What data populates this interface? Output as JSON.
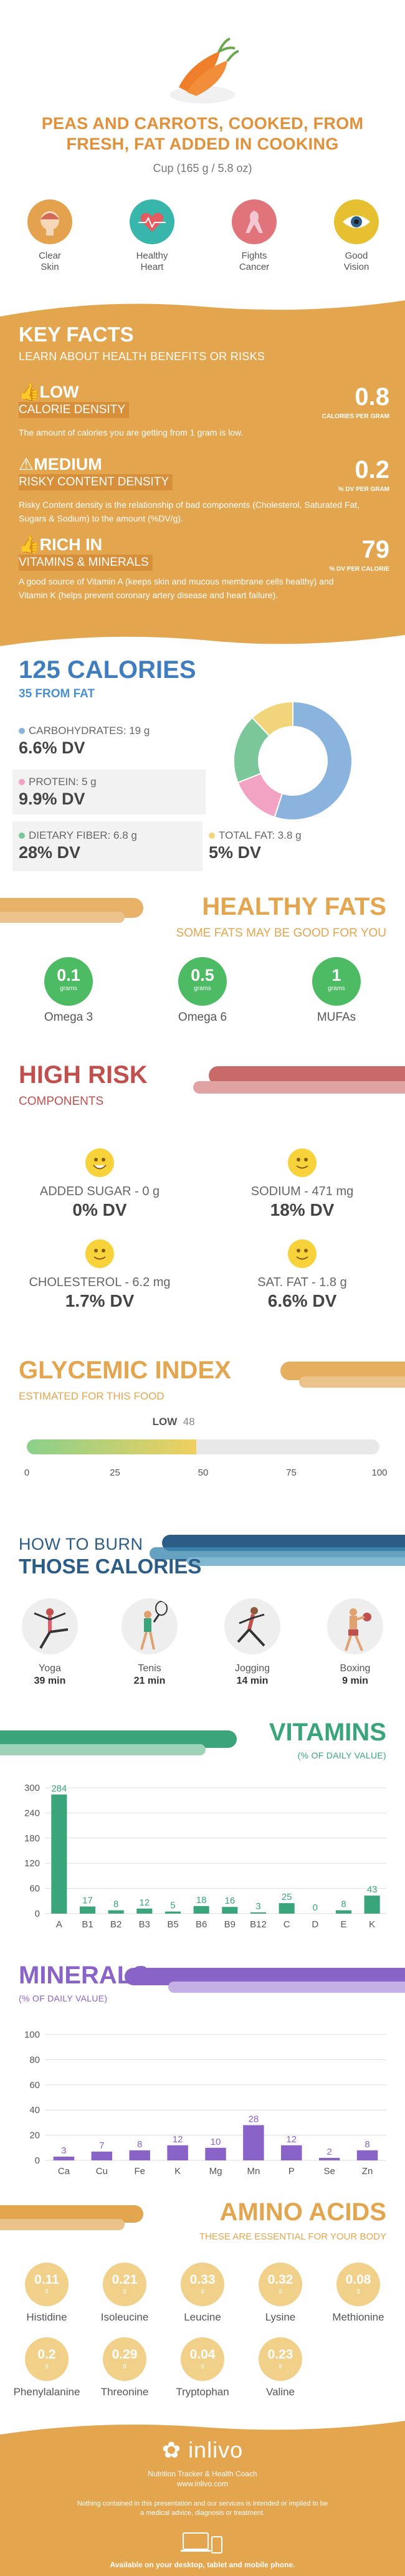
{
  "hero": {
    "title_line1": "PEAS AND CARROTS, COOKED, FROM",
    "title_line2": "FRESH, FAT ADDED IN COOKING",
    "serving": "Cup (165 g / 5.8 oz)",
    "benefits": [
      {
        "label1": "Clear",
        "label2": "Skin",
        "icon": "face-icon",
        "color": "#e4a24f"
      },
      {
        "label1": "Healthy",
        "label2": "Heart",
        "icon": "heart-icon",
        "color": "#38b6ab"
      },
      {
        "label1": "Fights",
        "label2": "Cancer",
        "icon": "ribbon-icon",
        "color": "#e0747a"
      },
      {
        "label1": "Good",
        "label2": "Vision",
        "icon": "eye-icon",
        "color": "#e6c030"
      }
    ]
  },
  "key_facts": {
    "title": "KEY FACTS",
    "subtitle": "LEARN ABOUT HEALTH BENEFITS OR RISKS",
    "items": [
      {
        "level": "LOW",
        "name": "CALORIE DENSITY",
        "desc": "The amount of calories you are getting from 1 gram is low.",
        "value": "0.8",
        "unit": "CALORIES PER GRAM",
        "icon": "thumbs-up-icon"
      },
      {
        "level": "MEDIUM",
        "name": "RISKY CONTENT DENSITY",
        "desc": "Risky Content density is the relationship of bad components (Cholesterol, Saturated Fat, Sugars & Sodium) to the amount (%DV/g).",
        "value": "0.2",
        "unit": "% DV PER GRAM",
        "icon": "warning-icon"
      },
      {
        "level": "RICH IN",
        "name": "VITAMINS & MINERALS",
        "desc": "A good source of Vitamin A (keeps skin and mucous membrane cells healthy) and Vitamin K (helps prevent coronary artery disease and heart failure).",
        "value": "79",
        "unit": "% DV PER CALORIE",
        "icon": "thumbs-up-icon"
      }
    ]
  },
  "calories": {
    "title": "125 CALORIES",
    "subtitle": "35 FROM FAT",
    "nutrients": [
      {
        "label": "CARBOHYDRATES: 19 g",
        "dv": "6.6% DV",
        "color": "#8ab4de"
      },
      {
        "label": "PROTEIN: 5 g",
        "dv": "9.9% DV",
        "color": "#f2a3c3"
      },
      {
        "label": "DIETARY FIBER: 6.8 g",
        "dv": "28% DV",
        "color": "#7cc79a"
      },
      {
        "label": "TOTAL FAT: 3.8 g",
        "dv": "5% DV",
        "color": "#f2d57a"
      }
    ],
    "donut": [
      {
        "name": "carbohydrates",
        "value": 55,
        "color": "#8ab4de"
      },
      {
        "name": "protein",
        "value": 14,
        "color": "#f2a3c3"
      },
      {
        "name": "fiber",
        "value": 19,
        "color": "#7cc79a"
      },
      {
        "name": "fat",
        "value": 12,
        "color": "#f2d57a"
      }
    ]
  },
  "healthy_fats": {
    "title": "HEALTHY FATS",
    "subtitle": "SOME FATS MAY BE GOOD FOR YOU",
    "items": [
      {
        "value": "0.1",
        "unit": "grams",
        "label": "Omega 3"
      },
      {
        "value": "0.5",
        "unit": "grams",
        "label": "Omega 6"
      },
      {
        "value": "1",
        "unit": "grams",
        "label": "MUFAs"
      }
    ]
  },
  "high_risk": {
    "title": "HIGH RISK",
    "subtitle": "COMPONENTS",
    "items": [
      {
        "label": "ADDED SUGAR - 0 g",
        "dv": "0% DV"
      },
      {
        "label": "SODIUM - 471 mg",
        "dv": "18% DV"
      },
      {
        "label": "CHOLESTEROL - 6.2 mg",
        "dv": "1.7% DV"
      },
      {
        "label": "SAT. FAT - 1.8 g",
        "dv": "6.6% DV"
      }
    ]
  },
  "glycemic": {
    "title": "GLYCEMIC INDEX",
    "subtitle": "ESTIMATED FOR THIS FOOD",
    "level": "LOW",
    "value": 48,
    "value_text": "48",
    "max": 100,
    "ticks": [
      "0",
      "25",
      "50",
      "75",
      "100"
    ]
  },
  "burn": {
    "title1": "HOW TO BURN",
    "title2": "THOSE CALORIES",
    "activities": [
      {
        "name": "Yoga",
        "time": "39 min",
        "icon": "yoga-icon"
      },
      {
        "name": "Tenis",
        "time": "21 min",
        "icon": "tennis-icon"
      },
      {
        "name": "Jogging",
        "time": "14 min",
        "icon": "jogging-icon"
      },
      {
        "name": "Boxing",
        "time": "9 min",
        "icon": "boxing-icon"
      }
    ]
  },
  "vitamins": {
    "title": "VITAMINS",
    "subtitle": "(% OF DAILY VALUE)",
    "color": "#3aa57a",
    "chart_data": {
      "type": "bar",
      "categories": [
        "A",
        "B1",
        "B2",
        "B3",
        "B5",
        "B6",
        "B9",
        "B12",
        "C",
        "D",
        "E",
        "K"
      ],
      "values": [
        284,
        17,
        8,
        12,
        5,
        18,
        16,
        3,
        25,
        0,
        8,
        43
      ],
      "labels": [
        "284",
        "17",
        "8",
        "12",
        "5",
        "18",
        "16",
        "3",
        "25",
        "0",
        "8",
        "43"
      ],
      "yticks": [
        "0",
        "60",
        "120",
        "180",
        "240",
        "300"
      ],
      "ylim": [
        0,
        300
      ]
    }
  },
  "minerals": {
    "title": "MINERALS",
    "subtitle": "(% OF DAILY VALUE)",
    "color": "#8a63c9",
    "chart_data": {
      "type": "bar",
      "categories": [
        "Ca",
        "Cu",
        "Fe",
        "K",
        "Mg",
        "Mn",
        "P",
        "Se",
        "Zn"
      ],
      "values": [
        3,
        7,
        8,
        12,
        10,
        28,
        12,
        2,
        8
      ],
      "labels": [
        "3",
        "7",
        "8",
        "12",
        "10",
        "28",
        "12",
        "2",
        "8"
      ],
      "yticks": [
        "0",
        "20",
        "40",
        "60",
        "80",
        "100"
      ],
      "ylim": [
        0,
        100
      ]
    }
  },
  "amino": {
    "title": "AMINO ACIDS",
    "subtitle": "THESE ARE ESSENTIAL FOR YOUR BODY",
    "items": [
      {
        "value": "0.11",
        "unit": "g",
        "label": "Histidine"
      },
      {
        "value": "0.21",
        "unit": "g",
        "label": "Isoleucine"
      },
      {
        "value": "0.33",
        "unit": "g",
        "label": "Leucine"
      },
      {
        "value": "0.32",
        "unit": "g",
        "label": "Lysine"
      },
      {
        "value": "0.08",
        "unit": "g",
        "label": "Methionine"
      },
      {
        "value": "0.2",
        "unit": "g",
        "label": "Phenylalanine"
      },
      {
        "value": "0.29",
        "unit": "g",
        "label": "Threonine"
      },
      {
        "value": "0.04",
        "unit": "g",
        "label": "Tryptophan"
      },
      {
        "value": "0.23",
        "unit": "g",
        "label": "Valine"
      }
    ]
  },
  "footer": {
    "brand": "inlivo",
    "tagline": "Nutrition Tracker & Health Coach",
    "url": "www.inlivo.com",
    "disclaimer": "Nothing contained in this presentation and our services is intended or implied to be a medical advice, diagnosis or treatment.",
    "available": "Available on your desktop, tablet and mobile phone."
  }
}
